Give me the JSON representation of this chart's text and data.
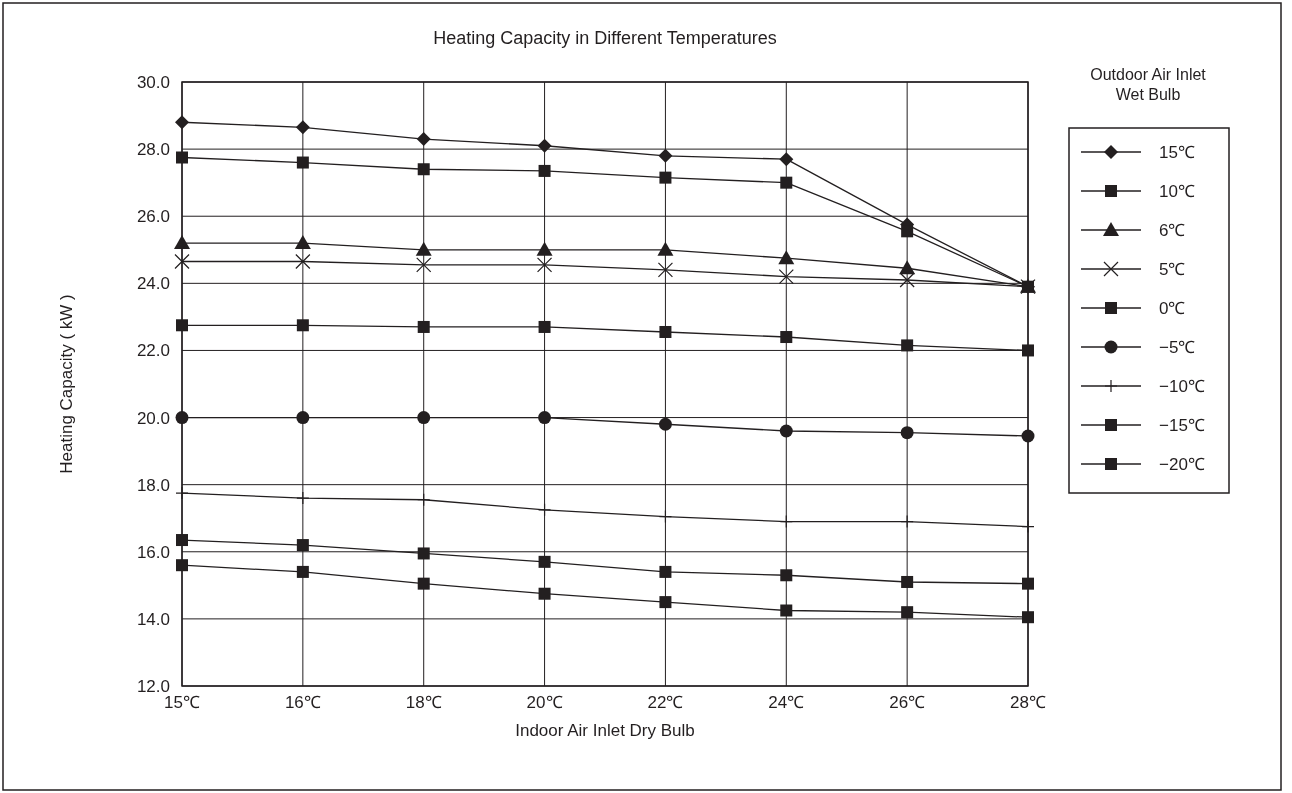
{
  "chart_data": {
    "type": "line",
    "title": "Heating Capacity in Different Temperatures",
    "xlabel": "Indoor Air Inlet Dry Bulb",
    "ylabel": "Heating Capacity ( kW )",
    "legend_title": "Outdoor Air Inlet Wet Bulb",
    "categories": [
      "15℃",
      "16℃",
      "18℃",
      "20℃",
      "22℃",
      "24℃",
      "26℃",
      "28℃"
    ],
    "series": [
      {
        "name": "15℃",
        "color": "#231f20",
        "marker": "diamond",
        "values": [
          28.8,
          28.65,
          28.3,
          28.1,
          27.8,
          27.7,
          25.75,
          23.9
        ]
      },
      {
        "name": "10℃",
        "color": "#231f20",
        "marker": "square",
        "values": [
          27.75,
          27.6,
          27.4,
          27.35,
          27.15,
          27.0,
          25.55,
          23.9
        ]
      },
      {
        "name": "6℃",
        "color": "#231f20",
        "marker": "triangle",
        "values": [
          25.2,
          25.2,
          25.0,
          25.0,
          25.0,
          24.75,
          24.45,
          23.9
        ]
      },
      {
        "name": "5℃",
        "color": "#231f20",
        "marker": "cross",
        "values": [
          24.65,
          24.65,
          24.55,
          24.55,
          24.4,
          24.2,
          24.1,
          23.9
        ]
      },
      {
        "name": "0℃",
        "color": "#231f20",
        "marker": "square",
        "values": [
          22.75,
          22.75,
          22.7,
          22.7,
          22.55,
          22.4,
          22.15,
          22.0
        ]
      },
      {
        "name": "−5℃",
        "color": "#231f20",
        "marker": "circle",
        "values": [
          20.0,
          20.0,
          20.0,
          20.0,
          19.8,
          19.6,
          19.55,
          19.45
        ]
      },
      {
        "name": "−10℃",
        "color": "#231f20",
        "marker": "plus",
        "values": [
          17.75,
          17.6,
          17.55,
          17.25,
          17.05,
          16.9,
          16.9,
          16.75
        ]
      },
      {
        "name": "−15℃",
        "color": "#231f20",
        "marker": "square",
        "values": [
          16.35,
          16.2,
          15.95,
          15.7,
          15.4,
          15.3,
          15.1,
          15.05
        ]
      },
      {
        "name": "−20℃",
        "color": "#231f20",
        "marker": "square",
        "values": [
          15.6,
          15.4,
          15.05,
          14.75,
          14.5,
          14.25,
          14.2,
          14.05
        ]
      }
    ],
    "ylim": [
      12,
      30
    ],
    "yticks": [
      {
        "value": 12,
        "label": "12.0"
      },
      {
        "value": 14,
        "label": "14.0"
      },
      {
        "value": 16,
        "label": "16.0"
      },
      {
        "value": 18,
        "label": "18.0"
      },
      {
        "value": 20,
        "label": "20.0"
      },
      {
        "value": 22,
        "label": "22.0"
      },
      {
        "value": 24,
        "label": "24.0"
      },
      {
        "value": 26,
        "label": "26.0"
      },
      {
        "value": 28,
        "label": "28.0"
      },
      {
        "value": 30,
        "label": "30.0"
      }
    ],
    "grid": true,
    "legend": "right",
    "line_style": "solid"
  }
}
